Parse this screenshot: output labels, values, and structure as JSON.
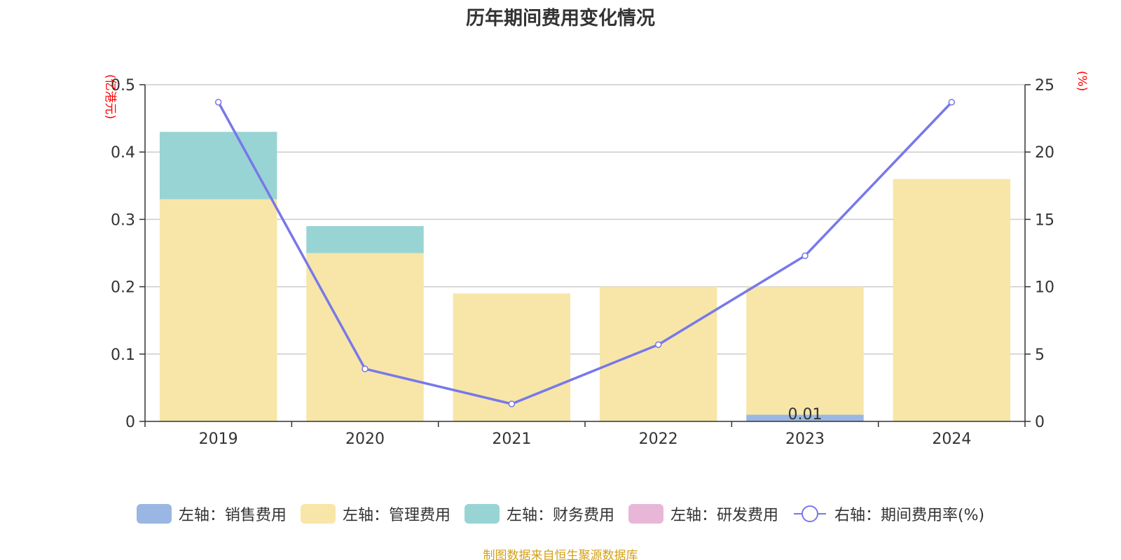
{
  "title": "历年期间费用变化情况",
  "source_note": "制图数据来自恒生聚源数据库",
  "colors": {
    "sales": "#9ab7e3",
    "admin": "#f7e6a8",
    "finance": "#98d4d4",
    "rnd": "#e8b7d8",
    "rate_line": "#7878ea",
    "grid": "#cccccc",
    "axis": "#333333",
    "unit_label": "#ff0000",
    "source_note": "#d4a017"
  },
  "legend": [
    {
      "label": "左轴：销售费用",
      "type": "swatch",
      "color_key": "sales"
    },
    {
      "label": "左轴：管理费用",
      "type": "swatch",
      "color_key": "admin"
    },
    {
      "label": "左轴：财务费用",
      "type": "swatch",
      "color_key": "finance"
    },
    {
      "label": "左轴：研发费用",
      "type": "swatch",
      "color_key": "rnd"
    },
    {
      "label": "右轴：期间费用率(%)",
      "type": "line-circle",
      "color_key": "rate_line"
    }
  ],
  "chart_data": {
    "type": "bar",
    "stacked": true,
    "categories": [
      "2019",
      "2020",
      "2021",
      "2022",
      "2023",
      "2024"
    ],
    "left_axis": {
      "unit": "(亿港元)",
      "ylim": [
        0,
        0.5
      ],
      "ticks": [
        "0",
        "0.1",
        "0.2",
        "0.3",
        "0.4",
        "0.5"
      ]
    },
    "right_axis": {
      "unit": "(%)",
      "ylim": [
        0,
        25
      ],
      "ticks": [
        "0",
        "5",
        "10",
        "15",
        "20",
        "25"
      ]
    },
    "series": [
      {
        "name": "左轴：销售费用",
        "axis": "left",
        "color_key": "sales",
        "values": [
          0,
          0,
          0,
          0,
          0.01,
          0
        ]
      },
      {
        "name": "左轴：管理费用",
        "axis": "left",
        "color_key": "admin",
        "values": [
          0.33,
          0.25,
          0.19,
          0.2,
          0.19,
          0.36
        ]
      },
      {
        "name": "左轴：财务费用",
        "axis": "left",
        "color_key": "finance",
        "values": [
          0.1,
          0.04,
          0,
          0,
          0,
          0
        ]
      },
      {
        "name": "左轴：研发费用",
        "axis": "left",
        "color_key": "rnd",
        "values": [
          0,
          0,
          0,
          0,
          0,
          0
        ]
      },
      {
        "name": "右轴：期间费用率(%)",
        "axis": "right",
        "type": "line",
        "color_key": "rate_line",
        "values": [
          23.7,
          3.9,
          1.3,
          5.7,
          12.3,
          23.7
        ]
      }
    ],
    "data_labels": [
      {
        "category": "2023",
        "series": "左轴：销售费用",
        "text": "0.01"
      }
    ],
    "grid": true,
    "legend_position": "bottom"
  }
}
